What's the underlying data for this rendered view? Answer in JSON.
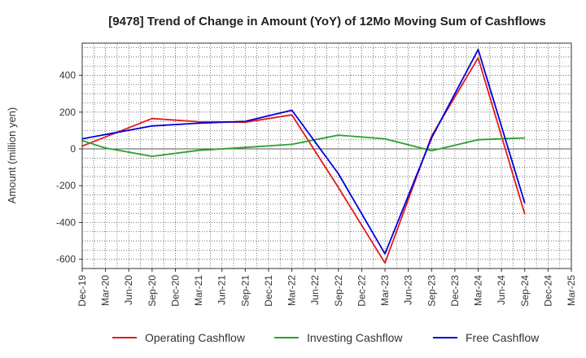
{
  "chart_data": {
    "type": "line",
    "title": "[9478]  Trend of Change in Amount (YoY) of 12Mo Moving Sum of Cashflows",
    "xlabel": "",
    "ylabel": "Amount (million yen)",
    "categories": [
      "Dec-19",
      "Mar-20",
      "Jun-20",
      "Sep-20",
      "Dec-20",
      "Mar-21",
      "Jun-21",
      "Sep-21",
      "Dec-21",
      "Mar-22",
      "Jun-22",
      "Sep-22",
      "Dec-22",
      "Mar-23",
      "Jun-23",
      "Sep-23",
      "Dec-23",
      "Mar-24",
      "Jun-24",
      "Sep-24",
      "Dec-24",
      "Mar-25"
    ],
    "ylim": [
      -650,
      575
    ],
    "yticks": [
      400,
      200,
      0,
      -200,
      -400,
      -600
    ],
    "grid": true,
    "legend_position": "bottom",
    "series": [
      {
        "name": "Operating Cashflow",
        "color": "#e31a1c",
        "points": [
          {
            "x": "Dec-19",
            "y": 15
          },
          {
            "x": "Sep-20",
            "y": 165
          },
          {
            "x": "Mar-21",
            "y": 148
          },
          {
            "x": "Sep-21",
            "y": 145
          },
          {
            "x": "Mar-22",
            "y": 185
          },
          {
            "x": "Sep-22",
            "y": -210
          },
          {
            "x": "Mar-23",
            "y": -620
          },
          {
            "x": "Sep-23",
            "y": 70
          },
          {
            "x": "Mar-24",
            "y": 495
          },
          {
            "x": "Sep-24",
            "y": -355
          }
        ]
      },
      {
        "name": "Investing Cashflow",
        "color": "#2ca02c",
        "points": [
          {
            "x": "Dec-19",
            "y": 45
          },
          {
            "x": "Mar-20",
            "y": 5
          },
          {
            "x": "Sep-20",
            "y": -40
          },
          {
            "x": "Mar-21",
            "y": -8
          },
          {
            "x": "Sep-21",
            "y": 8
          },
          {
            "x": "Mar-22",
            "y": 25
          },
          {
            "x": "Sep-22",
            "y": 75
          },
          {
            "x": "Mar-23",
            "y": 55
          },
          {
            "x": "Sep-23",
            "y": -10
          },
          {
            "x": "Mar-24",
            "y": 50
          },
          {
            "x": "Sep-24",
            "y": 60
          }
        ]
      },
      {
        "name": "Free Cashflow",
        "color": "#0000dd",
        "points": [
          {
            "x": "Dec-19",
            "y": 55
          },
          {
            "x": "Sep-20",
            "y": 125
          },
          {
            "x": "Mar-21",
            "y": 140
          },
          {
            "x": "Sep-21",
            "y": 150
          },
          {
            "x": "Mar-22",
            "y": 210
          },
          {
            "x": "Sep-22",
            "y": -135
          },
          {
            "x": "Mar-23",
            "y": -570
          },
          {
            "x": "Sep-23",
            "y": 60
          },
          {
            "x": "Mar-24",
            "y": 540
          },
          {
            "x": "Sep-24",
            "y": -295
          }
        ]
      }
    ]
  }
}
